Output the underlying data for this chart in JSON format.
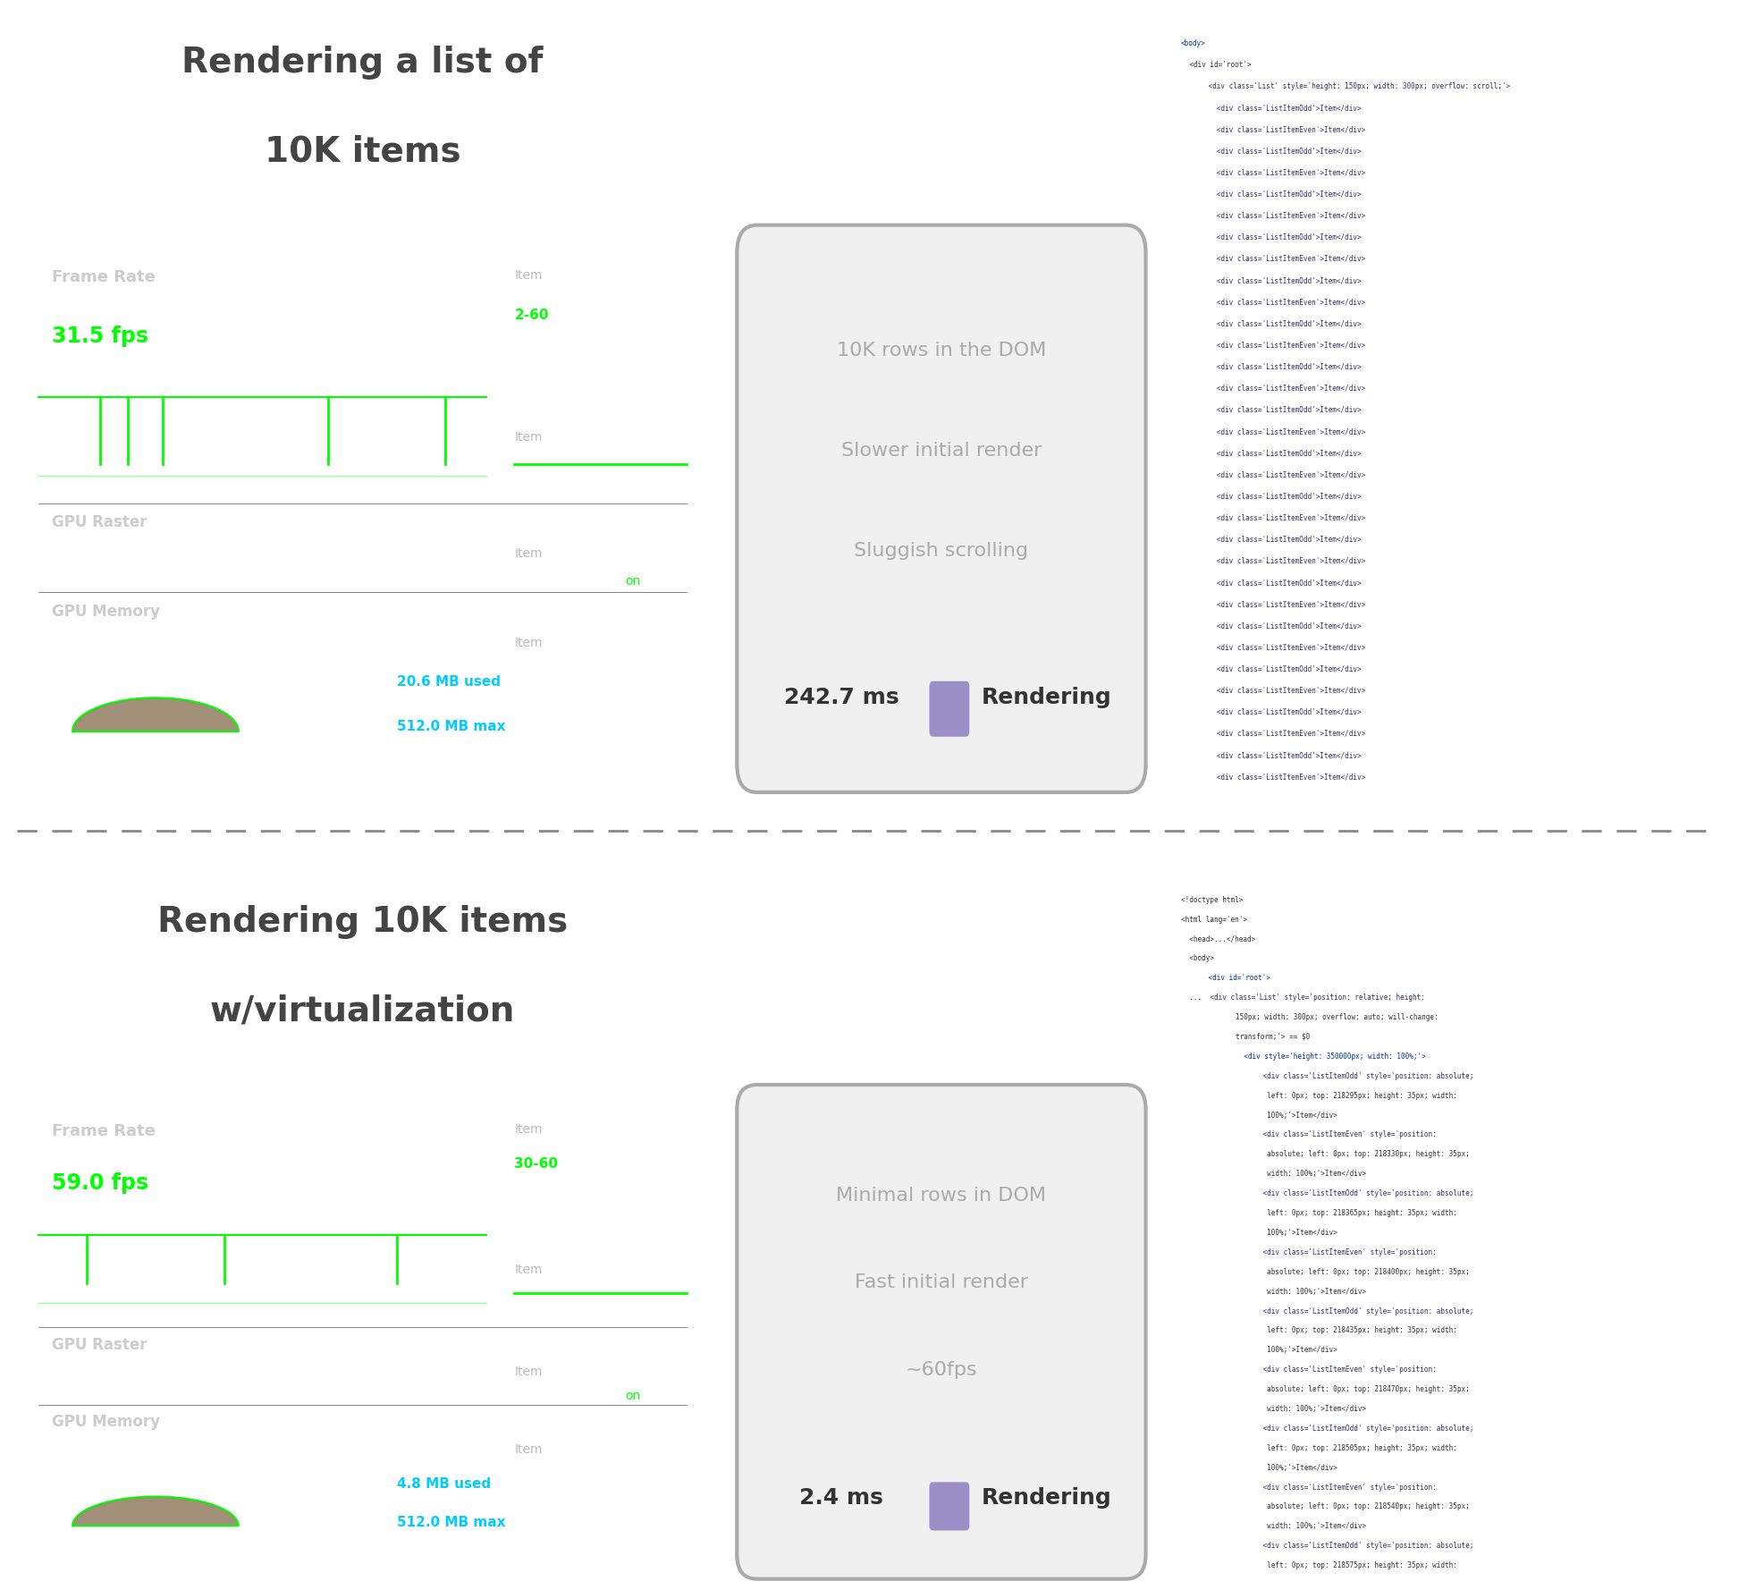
{
  "title1": "Rendering a list of",
  "title1b": "10K items",
  "title2": "Rendering 10K items",
  "title2b": "w/virtualization",
  "panel1": {
    "frame_rate_label": "Frame Rate",
    "fps_value": "31.5 fps",
    "fps_color": "#00ff00",
    "item_label1": "Item",
    "item_range1": "2-60",
    "item_label2": "Item",
    "item_label3": "Item",
    "item_label4": "Item",
    "gpu_raster_label": "GPU Raster",
    "gpu_raster_on": "on",
    "gpu_memory_label": "GPU Memory",
    "memory_used": "20.6 MB used",
    "memory_max": "512.0 MB max",
    "bg_color": "#333333"
  },
  "panel2": {
    "frame_rate_label": "Frame Rate",
    "fps_value": "59.0 fps",
    "fps_color": "#00ff00",
    "item_label1": "Item",
    "item_range1": "30-60",
    "item_label2": "Item",
    "item_label3": "Item",
    "item_label4": "Item",
    "gpu_raster_label": "GPU Raster",
    "gpu_raster_on": "on",
    "gpu_memory_label": "GPU Memory",
    "memory_used": "4.8 MB used",
    "memory_max": "512.0 MB max",
    "bg_color": "#333333"
  },
  "bubble1": {
    "line1": "10K rows in the DOM",
    "line2": "Slower initial render",
    "line3": "Sluggish scrolling",
    "timing": "242.7 ms",
    "timing_label": "Rendering",
    "color": "#aaaaaa",
    "box_color": "#f5f5f5",
    "border_color": "#999999"
  },
  "bubble2": {
    "line1": "Minimal rows in DOM",
    "line2": "Fast initial render",
    "line3": "~60fps",
    "timing": "2.4 ms",
    "timing_label": "Rendering",
    "color": "#aaaaaa",
    "box_color": "#f5f5f5",
    "border_color": "#999999"
  },
  "divider_color": "#555555",
  "title_color": "#444444",
  "background_color": "#ffffff",
  "green_color": "#00ff00",
  "rendering_box_color": "#9b8fc8",
  "code_bg": "#f8f8f8",
  "code_border": "#cccccc"
}
